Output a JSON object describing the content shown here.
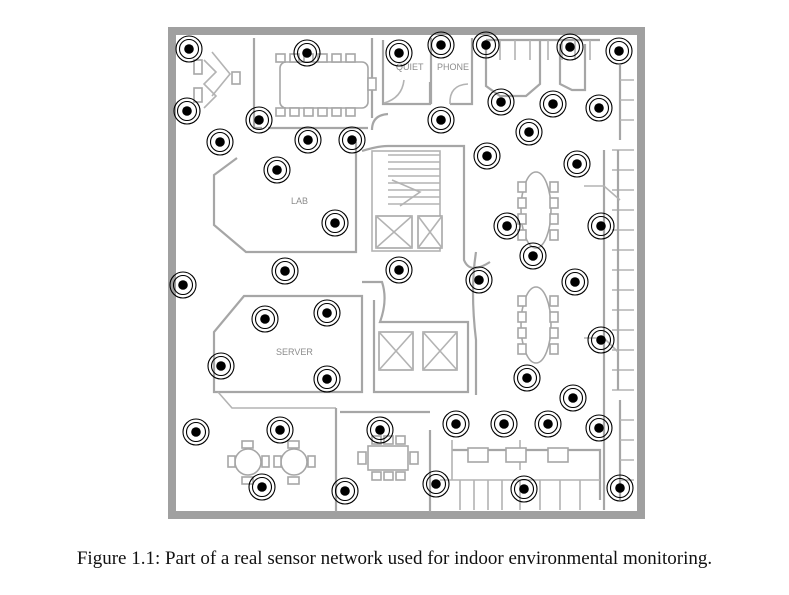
{
  "figure": {
    "caption": "Figure 1.1: Part of a real sensor network used for indoor environmental monitoring."
  },
  "floorplan": {
    "rooms": {
      "quiet": "QUIET",
      "phone": "PHONE",
      "lab": "LAB",
      "server": "SERVER"
    },
    "sensor_count": 54,
    "colors": {
      "outer_wall": "#a0a0a0",
      "walls": "#a6a6a6",
      "sensor": "#000000",
      "background": "#ffffff"
    }
  }
}
